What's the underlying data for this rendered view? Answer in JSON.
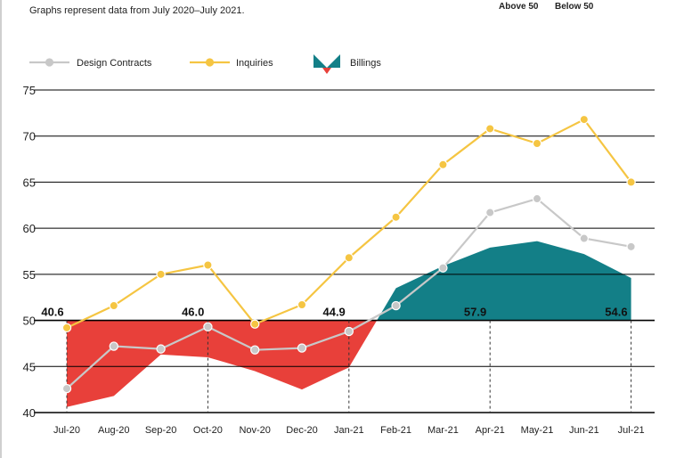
{
  "note": "Graphs represent data from July 2020–July 2021.",
  "above_label": "Above 50",
  "below_label": "Below 50",
  "colors": {
    "design": "#c8c8c8",
    "inquiries": "#f5c542",
    "billings_above": "#137f87",
    "billings_below": "#e8403a",
    "axis": "#000000"
  },
  "chart_data": {
    "type": "line",
    "categories": [
      "Jul-20",
      "Aug-20",
      "Sep-20",
      "Oct-20",
      "Nov-20",
      "Dec-20",
      "Jan-21",
      "Feb-21",
      "Mar-21",
      "Apr-21",
      "May-21",
      "Jun-21",
      "Jul-21"
    ],
    "ylim": [
      40,
      75
    ],
    "yticks": [
      40,
      45,
      50,
      55,
      60,
      65,
      70,
      75
    ],
    "grid": true,
    "legend_position": "top-left",
    "series": [
      {
        "name": "Design Contracts",
        "kind": "line",
        "values": [
          42.6,
          47.2,
          46.9,
          49.3,
          46.8,
          47.0,
          48.8,
          51.6,
          55.7,
          61.7,
          63.2,
          58.9,
          58.0
        ]
      },
      {
        "name": "Inquiries",
        "kind": "line",
        "values": [
          49.2,
          51.6,
          55.0,
          56.0,
          49.6,
          51.7,
          56.8,
          61.2,
          66.9,
          70.8,
          69.2,
          71.8,
          65.0
        ]
      },
      {
        "name": "Billings",
        "kind": "area",
        "baseline": 50,
        "values": [
          40.6,
          41.8,
          46.3,
          46.0,
          44.5,
          42.5,
          44.9,
          53.5,
          55.9,
          57.9,
          58.6,
          57.2,
          54.6
        ]
      }
    ],
    "annotations": [
      {
        "index": 0,
        "text": "40.6"
      },
      {
        "index": 3,
        "text": "46.0"
      },
      {
        "index": 6,
        "text": "44.9"
      },
      {
        "index": 9,
        "text": "57.9"
      },
      {
        "index": 12,
        "text": "54.6"
      }
    ]
  }
}
